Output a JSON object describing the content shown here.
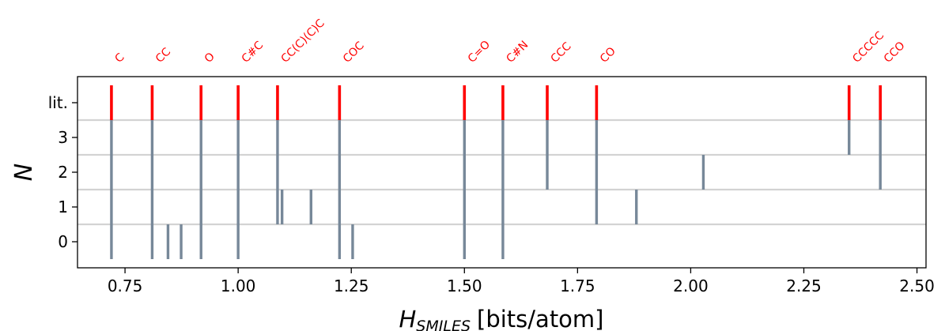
{
  "chart_data": {
    "type": "scatter",
    "title": "",
    "xlabel_main": "H",
    "xlabel_sub": "SMILES",
    "xlabel_unit": "[bits/atom]",
    "ylabel": "N",
    "xlim": [
      0.645,
      2.52
    ],
    "x_ticks": [
      0.75,
      1.0,
      1.25,
      1.5,
      1.75,
      2.0,
      2.25,
      2.5
    ],
    "x_tick_labels": [
      "0.75",
      "1.00",
      "1.25",
      "1.50",
      "1.75",
      "2.00",
      "2.25",
      "2.50"
    ],
    "y_rows": [
      "0",
      "1",
      "2",
      "3",
      "lit."
    ],
    "grid_lines_between_rows": true,
    "colors": {
      "lit": "#ff0000",
      "data": "#778899",
      "grid": "#d3d3d3",
      "label": "#ff0000"
    },
    "literature": [
      {
        "smiles": "C",
        "x": 0.72
      },
      {
        "smiles": "CC",
        "x": 0.81
      },
      {
        "smiles": "O",
        "x": 0.918
      },
      {
        "smiles": "C#C",
        "x": 1.0
      },
      {
        "smiles": "CC(C)(C)C",
        "x": 1.087
      },
      {
        "smiles": "COC",
        "x": 1.224
      },
      {
        "smiles": "C=O",
        "x": 1.5
      },
      {
        "smiles": "C#N",
        "x": 1.585
      },
      {
        "smiles": "CCC",
        "x": 1.683
      },
      {
        "smiles": "CO",
        "x": 1.792
      },
      {
        "smiles": "CCCCC",
        "x": 2.35
      },
      {
        "smiles": "CCO",
        "x": 2.419
      }
    ],
    "series": [
      {
        "n": 3,
        "x": [
          0.72,
          0.81,
          0.918,
          1.0,
          1.087,
          1.224,
          1.5,
          1.585,
          1.683,
          1.792,
          2.35,
          2.419
        ]
      },
      {
        "n": 2,
        "x": [
          0.72,
          0.81,
          0.918,
          1.0,
          1.087,
          1.224,
          1.5,
          1.585,
          1.683,
          1.792,
          2.028,
          2.419
        ]
      },
      {
        "n": 1,
        "x": [
          0.72,
          0.81,
          0.918,
          1.0,
          1.087,
          1.097,
          1.161,
          1.224,
          1.5,
          1.585,
          1.792,
          1.88
        ]
      },
      {
        "n": 0,
        "x": [
          0.72,
          0.81,
          0.845,
          0.874,
          0.918,
          1.0,
          1.224,
          1.253,
          1.5,
          1.585
        ]
      }
    ]
  }
}
